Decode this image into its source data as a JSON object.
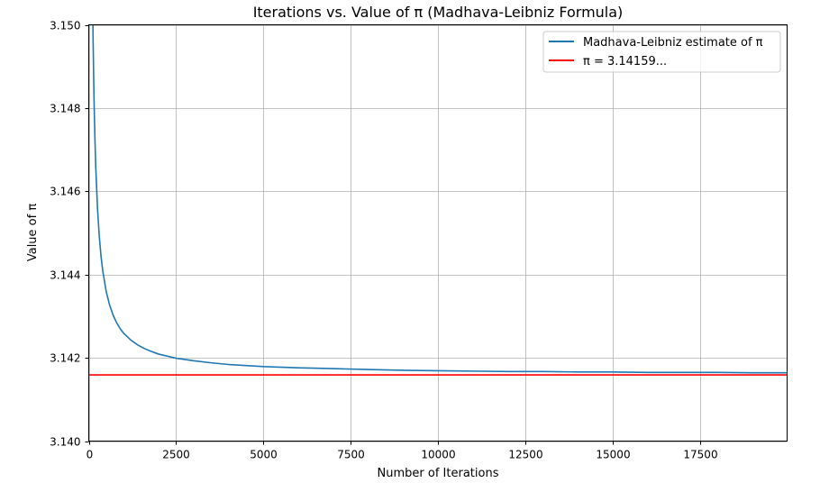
{
  "chart_data": {
    "type": "line",
    "title": "Iterations vs. Value of π (Madhava-Leibniz Formula)",
    "xlabel": "Number of Iterations",
    "ylabel": "Value of π",
    "xlim": [
      0,
      20000
    ],
    "ylim": [
      3.14,
      3.15
    ],
    "x_ticks": [
      0,
      2500,
      5000,
      7500,
      10000,
      12500,
      15000,
      17500
    ],
    "x_tick_labels": [
      "0",
      "2500",
      "5000",
      "7500",
      "10000",
      "12500",
      "15000",
      "17500"
    ],
    "y_ticks": [
      3.14,
      3.142,
      3.144,
      3.146,
      3.148,
      3.15
    ],
    "y_tick_labels": [
      "3.140",
      "3.142",
      "3.144",
      "3.146",
      "3.148",
      "3.150"
    ],
    "grid": true,
    "legend_position": "top-right",
    "series": [
      {
        "name": "Madhava-Leibniz estimate of π",
        "color": "#1f77b4",
        "x": [
          100,
          125,
          150,
          175,
          200,
          250,
          300,
          350,
          400,
          500,
          600,
          700,
          800,
          900,
          1000,
          1200,
          1400,
          1600,
          1800,
          2000,
          2500,
          3000,
          3500,
          4000,
          5000,
          6000,
          7000,
          8000,
          9000,
          10000,
          11000,
          12000,
          13000,
          14000,
          15000,
          16000,
          17000,
          18000,
          19000,
          20000
        ],
        "y": [
          3.15159,
          3.14959,
          3.14826,
          3.14731,
          3.14659,
          3.14559,
          3.14493,
          3.14445,
          3.14409,
          3.14359,
          3.14326,
          3.14302,
          3.14284,
          3.1427,
          3.14259,
          3.14243,
          3.14231,
          3.14222,
          3.14215,
          3.14209,
          3.14199,
          3.14193,
          3.14188,
          3.14184,
          3.14179,
          3.14176,
          3.14174,
          3.14172,
          3.1417,
          3.14169,
          3.14168,
          3.14167,
          3.14167,
          3.14166,
          3.14166,
          3.14165,
          3.14165,
          3.14165,
          3.14164,
          3.14164
        ]
      },
      {
        "name": "π = 3.14159...",
        "color": "#ff0000",
        "x": [
          0,
          20000
        ],
        "y": [
          3.14159,
          3.14159
        ]
      }
    ]
  }
}
